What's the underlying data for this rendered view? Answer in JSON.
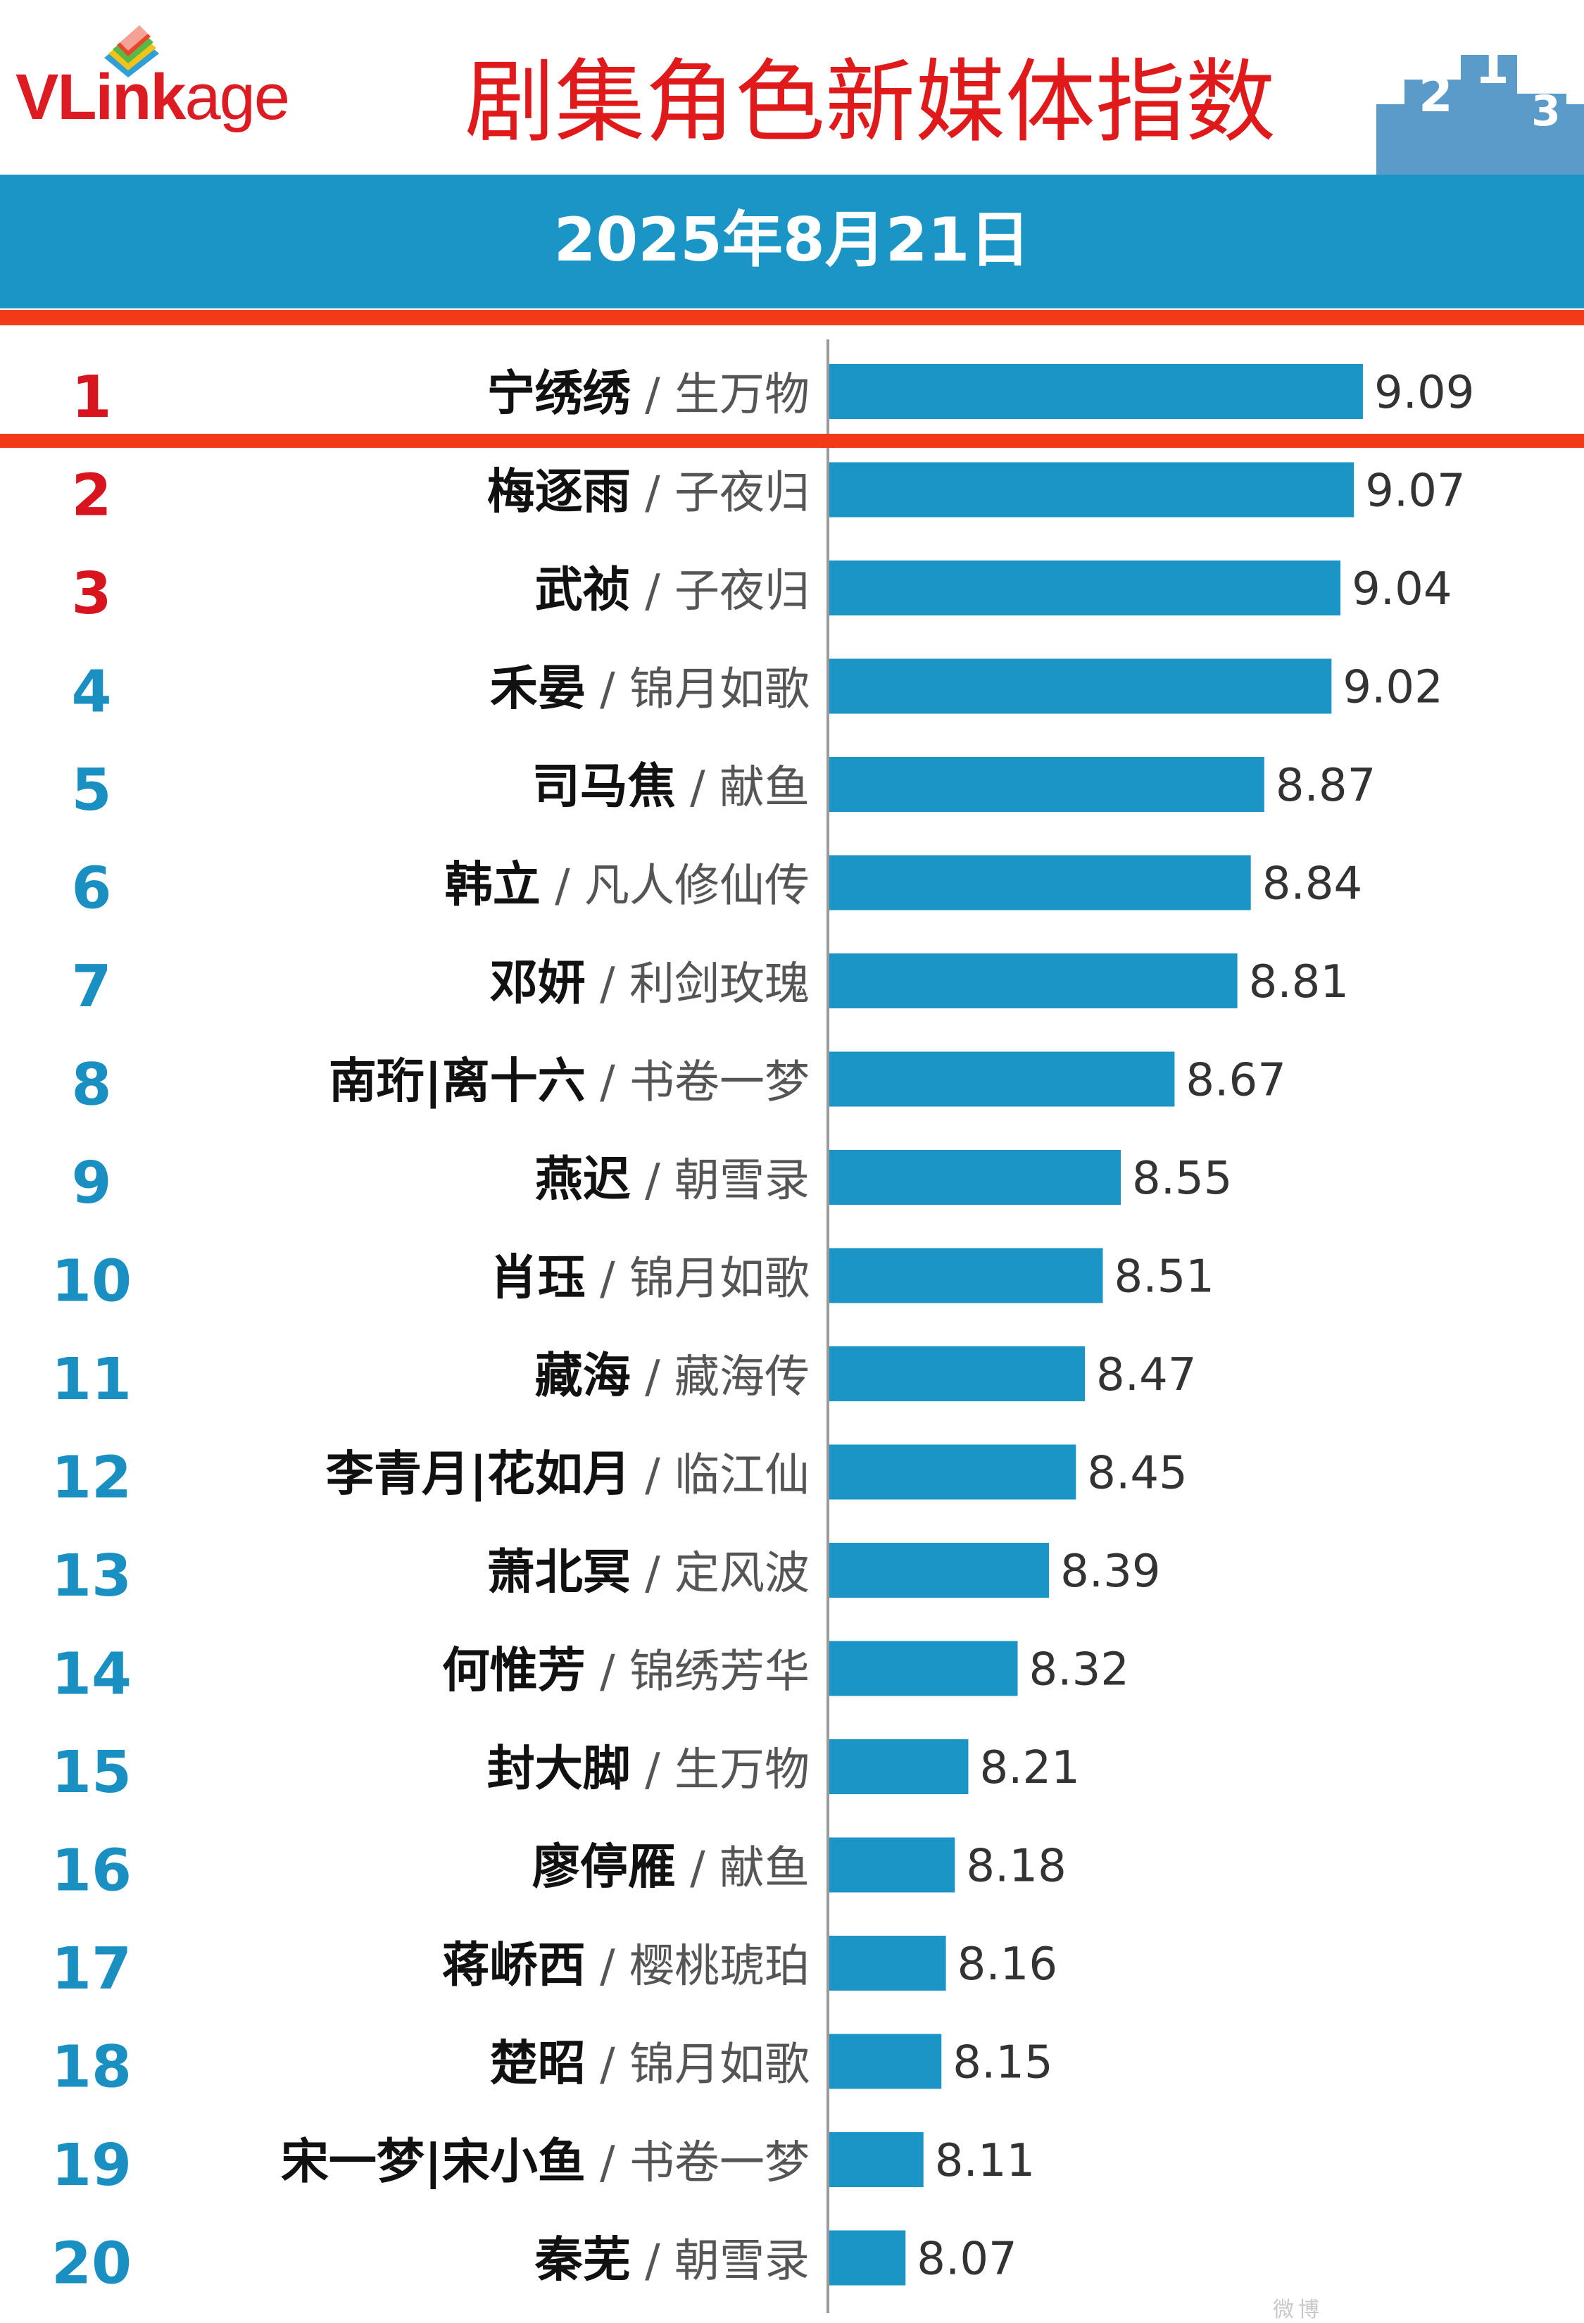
{
  "header": {
    "brand": "VLinkage",
    "brand_bold": "VLink",
    "brand_rest": "age",
    "title": "剧集角色新媒体指数",
    "date": "2025年8月21日"
  },
  "colors": {
    "bar": "#1a95c6",
    "rank_top3": "#d8141e",
    "rank_other": "#1a8fc2",
    "accent_line": "#f23a18",
    "title": "#e0191b"
  },
  "chart_data": {
    "type": "bar",
    "orientation": "horizontal",
    "title": "剧集角色新媒体指数",
    "subtitle": "2025年8月21日",
    "xlim": [
      7.9,
      9.2
    ],
    "rows": [
      {
        "rank": "1",
        "role": "宁绣绣",
        "drama": "生万物",
        "value": 9.09
      },
      {
        "rank": "2",
        "role": "梅逐雨",
        "drama": "子夜归",
        "value": 9.07
      },
      {
        "rank": "3",
        "role": "武祯",
        "drama": "子夜归",
        "value": 9.04
      },
      {
        "rank": "4",
        "role": "禾晏",
        "drama": "锦月如歌",
        "value": 9.02
      },
      {
        "rank": "5",
        "role": "司马焦",
        "drama": "献鱼",
        "value": 8.87
      },
      {
        "rank": "6",
        "role": "韩立",
        "drama": "凡人修仙传",
        "value": 8.84
      },
      {
        "rank": "7",
        "role": "邓妍",
        "drama": "利剑玫瑰",
        "value": 8.81
      },
      {
        "rank": "8",
        "role": "南珩|离十六",
        "drama": "书卷一梦",
        "value": 8.67
      },
      {
        "rank": "9",
        "role": "燕迟",
        "drama": "朝雪录",
        "value": 8.55
      },
      {
        "rank": "10",
        "role": "肖珏",
        "drama": "锦月如歌",
        "value": 8.51
      },
      {
        "rank": "11",
        "role": "藏海",
        "drama": "藏海传",
        "value": 8.47
      },
      {
        "rank": "12",
        "role": "李青月|花如月",
        "drama": "临江仙",
        "value": 8.45
      },
      {
        "rank": "13",
        "role": "萧北冥",
        "drama": "定风波",
        "value": 8.39
      },
      {
        "rank": "14",
        "role": "何惟芳",
        "drama": "锦绣芳华",
        "value": 8.32
      },
      {
        "rank": "15",
        "role": "封大脚",
        "drama": "生万物",
        "value": 8.21
      },
      {
        "rank": "16",
        "role": "廖停雁",
        "drama": "献鱼",
        "value": 8.18
      },
      {
        "rank": "17",
        "role": "蒋峤西",
        "drama": "樱桃琥珀",
        "value": 8.16
      },
      {
        "rank": "18",
        "role": "楚昭",
        "drama": "锦月如歌",
        "value": 8.15
      },
      {
        "rank": "19",
        "role": "宋一梦|宋小鱼",
        "drama": "书卷一梦",
        "value": 8.11
      },
      {
        "rank": "20",
        "role": "秦芜",
        "drama": "朝雪录",
        "value": 8.07
      }
    ]
  },
  "watermark": "微博"
}
